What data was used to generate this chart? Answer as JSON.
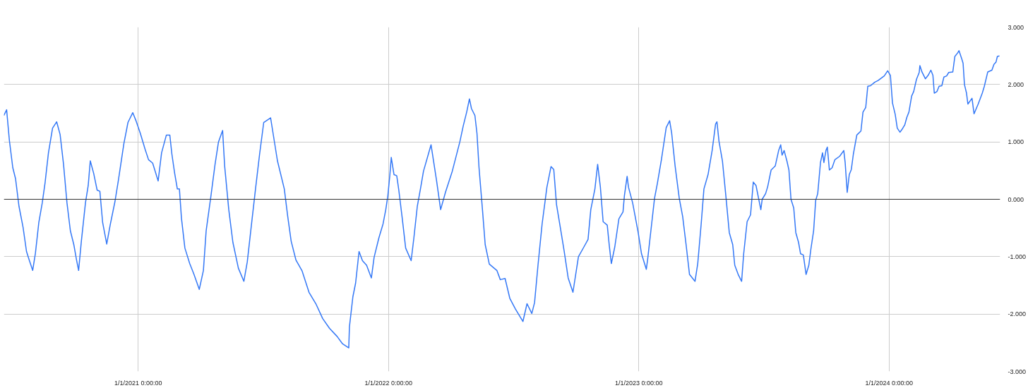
{
  "chart_data": {
    "type": "line",
    "xlim": [
      "2020-06-19",
      "2024-06-11"
    ],
    "xticks": [
      {
        "value": "2021-01-01",
        "label": "1/1/2021 0:00:00"
      },
      {
        "value": "2022-01-01",
        "label": "1/1/2022 0:00:00"
      },
      {
        "value": "2023-01-01",
        "label": "1/1/2023 0:00:00"
      },
      {
        "value": "2024-01-01",
        "label": "1/1/2024 0:00:00"
      }
    ],
    "ylim": [
      -3,
      3
    ],
    "yticks": [
      {
        "value": -3,
        "label": "-3.000"
      },
      {
        "value": -2,
        "label": "-2.000"
      },
      {
        "value": -1,
        "label": "-1.000"
      },
      {
        "value": 0,
        "label": "0.000"
      },
      {
        "value": 1,
        "label": "1.000"
      },
      {
        "value": 2,
        "label": "2.000"
      },
      {
        "value": 3,
        "label": "3.000"
      }
    ],
    "grid": true,
    "ref_lines": [
      {
        "axis": "y",
        "value": 0,
        "color": "#333333"
      }
    ],
    "x": [
      "2020-06-19",
      "2020-06-23",
      "2020-06-27",
      "2020-07-02",
      "2020-07-06",
      "2020-07-11",
      "2020-07-17",
      "2020-07-22",
      "2020-07-26",
      "2020-07-31",
      "2020-08-04",
      "2020-08-09",
      "2020-08-14",
      "2020-08-18",
      "2020-08-23",
      "2020-08-29",
      "2020-09-04",
      "2020-09-09",
      "2020-09-14",
      "2020-09-19",
      "2020-09-24",
      "2020-09-29",
      "2020-10-03",
      "2020-10-06",
      "2020-10-10",
      "2020-10-16",
      "2020-10-20",
      "2020-10-23",
      "2020-10-28",
      "2020-11-02",
      "2020-11-06",
      "2020-11-10",
      "2020-11-16",
      "2020-11-21",
      "2020-11-28",
      "2020-12-03",
      "2020-12-11",
      "2020-12-17",
      "2020-12-24",
      "2020-12-29",
      "2021-01-04",
      "2021-01-11",
      "2021-01-16",
      "2021-01-22",
      "2021-01-30",
      "2021-02-04",
      "2021-02-11",
      "2021-02-16",
      "2021-02-19",
      "2021-02-23",
      "2021-02-27",
      "2021-03-02",
      "2021-03-05",
      "2021-03-10",
      "2021-03-17",
      "2021-03-23",
      "2021-03-31",
      "2021-04-06",
      "2021-04-10",
      "2021-04-17",
      "2021-04-23",
      "2021-04-28",
      "2021-05-04",
      "2021-05-07",
      "2021-05-13",
      "2021-05-19",
      "2021-05-27",
      "2021-06-04",
      "2021-06-09",
      "2021-06-15",
      "2021-06-21",
      "2021-06-27",
      "2021-07-03",
      "2021-07-13",
      "2021-07-23",
      "2021-08-02",
      "2021-08-07",
      "2021-08-12",
      "2021-08-19",
      "2021-08-28",
      "2021-09-07",
      "2021-09-17",
      "2021-09-27",
      "2021-10-07",
      "2021-10-18",
      "2021-10-26",
      "2021-11-04",
      "2021-11-05",
      "2021-11-10",
      "2021-11-14",
      "2021-11-19",
      "2021-11-24",
      "2021-11-30",
      "2021-12-07",
      "2021-12-11",
      "2021-12-18",
      "2021-12-24",
      "2021-12-28",
      "2021-12-31",
      "2022-01-03",
      "2022-01-05",
      "2022-01-09",
      "2022-01-13",
      "2022-01-16",
      "2022-01-21",
      "2022-01-26",
      "2022-02-03",
      "2022-02-07",
      "2022-02-12",
      "2022-02-17",
      "2022-02-21",
      "2022-03-04",
      "2022-03-12",
      "2022-03-18",
      "2022-03-25",
      "2022-04-04",
      "2022-04-15",
      "2022-04-20",
      "2022-04-25",
      "2022-04-29",
      "2022-05-02",
      "2022-05-07",
      "2022-05-10",
      "2022-05-13",
      "2022-05-18",
      "2022-05-22",
      "2022-05-28",
      "2022-06-08",
      "2022-06-13",
      "2022-06-20",
      "2022-06-27",
      "2022-07-05",
      "2022-07-16",
      "2022-07-22",
      "2022-07-29",
      "2022-08-02",
      "2022-08-07",
      "2022-08-13",
      "2022-08-20",
      "2022-08-26",
      "2022-08-30",
      "2022-09-03",
      "2022-09-08",
      "2022-09-14",
      "2022-09-20",
      "2022-09-27",
      "2022-10-05",
      "2022-10-13",
      "2022-10-19",
      "2022-10-23",
      "2022-10-29",
      "2022-11-02",
      "2022-11-06",
      "2022-11-10",
      "2022-11-16",
      "2022-11-19",
      "2022-11-22",
      "2022-11-27",
      "2022-12-03",
      "2022-12-09",
      "2022-12-11",
      "2022-12-15",
      "2022-12-17",
      "2022-12-23",
      "2022-12-31",
      "2023-01-05",
      "2023-01-12",
      "2023-01-14",
      "2023-01-19",
      "2023-01-24",
      "2023-01-28",
      "2023-02-03",
      "2023-02-10",
      "2023-02-15",
      "2023-02-18",
      "2023-02-23",
      "2023-03-01",
      "2023-03-06",
      "2023-03-11",
      "2023-03-16",
      "2023-03-24",
      "2023-03-28",
      "2023-04-02",
      "2023-04-06",
      "2023-04-12",
      "2023-04-18",
      "2023-04-23",
      "2023-04-25",
      "2023-04-28",
      "2023-05-03",
      "2023-05-08",
      "2023-05-13",
      "2023-05-18",
      "2023-05-21",
      "2023-05-26",
      "2023-05-31",
      "2023-06-03",
      "2023-06-08",
      "2023-06-13",
      "2023-06-17",
      "2023-06-21",
      "2023-06-28",
      "2023-06-30",
      "2023-07-05",
      "2023-07-08",
      "2023-07-13",
      "2023-07-19",
      "2023-07-24",
      "2023-07-27",
      "2023-07-29",
      "2023-08-01",
      "2023-08-05",
      "2023-08-08",
      "2023-08-11",
      "2023-08-15",
      "2023-08-18",
      "2023-08-22",
      "2023-08-25",
      "2023-08-29",
      "2023-09-02",
      "2023-09-06",
      "2023-09-09",
      "2023-09-13",
      "2023-09-16",
      "2023-09-19",
      "2023-09-23",
      "2023-09-26",
      "2023-09-28",
      "2023-10-01",
      "2023-10-03",
      "2023-10-06",
      "2023-10-10",
      "2023-10-14",
      "2023-10-21",
      "2023-10-27",
      "2023-10-29",
      "2023-11-01",
      "2023-11-04",
      "2023-11-07",
      "2023-11-10",
      "2023-11-15",
      "2023-11-21",
      "2023-11-24",
      "2023-11-28",
      "2023-12-01",
      "2023-12-05",
      "2023-12-11",
      "2023-12-16",
      "2023-12-25",
      "2023-12-30",
      "2024-01-03",
      "2024-01-06",
      "2024-01-10",
      "2024-01-13",
      "2024-01-17",
      "2024-01-20",
      "2024-01-24",
      "2024-01-27",
      "2024-01-30",
      "2024-02-03",
      "2024-02-06",
      "2024-02-10",
      "2024-02-14",
      "2024-02-15",
      "2024-02-18",
      "2024-02-23",
      "2024-02-27",
      "2024-03-02",
      "2024-03-05",
      "2024-03-07",
      "2024-03-11",
      "2024-03-14",
      "2024-03-18",
      "2024-03-21",
      "2024-03-25",
      "2024-03-28",
      "2024-04-03",
      "2024-04-06",
      "2024-04-10",
      "2024-04-12",
      "2024-04-16",
      "2024-04-18",
      "2024-04-20",
      "2024-04-23",
      "2024-04-25",
      "2024-05-01",
      "2024-05-04",
      "2024-05-10",
      "2024-05-16",
      "2024-05-19",
      "2024-05-24",
      "2024-05-30",
      "2024-06-02",
      "2024-06-05",
      "2024-06-07",
      "2024-06-10"
    ],
    "series": [
      {
        "color": "#3478f6",
        "values": [
          1.46,
          1.56,
          1.03,
          0.55,
          0.36,
          -0.12,
          -0.49,
          -0.91,
          -1.06,
          -1.24,
          -0.94,
          -0.4,
          -0.06,
          0.28,
          0.81,
          1.24,
          1.35,
          1.13,
          0.61,
          -0.06,
          -0.55,
          -0.79,
          -1.06,
          -1.24,
          -0.73,
          -0.06,
          0.24,
          0.67,
          0.45,
          0.16,
          0.14,
          -0.4,
          -0.78,
          -0.45,
          -0.04,
          0.33,
          0.97,
          1.34,
          1.51,
          1.36,
          1.15,
          0.87,
          0.69,
          0.63,
          0.32,
          0.81,
          1.12,
          1.12,
          0.79,
          0.46,
          0.18,
          0.18,
          -0.33,
          -0.85,
          -1.12,
          -1.3,
          -1.57,
          -1.24,
          -0.55,
          0.06,
          0.61,
          1.0,
          1.2,
          0.58,
          -0.18,
          -0.75,
          -1.2,
          -1.43,
          -1.09,
          -0.45,
          0.18,
          0.79,
          1.34,
          1.42,
          0.67,
          0.18,
          -0.3,
          -0.73,
          -1.06,
          -1.25,
          -1.62,
          -1.82,
          -2.08,
          -2.25,
          -2.39,
          -2.52,
          -2.59,
          -2.22,
          -1.7,
          -1.46,
          -0.91,
          -1.07,
          -1.15,
          -1.37,
          -1.01,
          -0.67,
          -0.43,
          -0.18,
          0.06,
          0.43,
          0.73,
          0.43,
          0.41,
          0.16,
          -0.33,
          -0.85,
          -1.07,
          -0.67,
          -0.12,
          0.21,
          0.49,
          0.95,
          0.33,
          -0.18,
          0.12,
          0.49,
          1.0,
          1.28,
          1.52,
          1.75,
          1.58,
          1.46,
          1.15,
          0.55,
          -0.18,
          -0.79,
          -1.13,
          -1.24,
          -1.4,
          -1.38,
          -1.73,
          -1.91,
          -2.13,
          -1.82,
          -1.99,
          -1.8,
          -1.15,
          -0.43,
          0.21,
          0.57,
          0.52,
          -0.09,
          -0.45,
          -0.89,
          -1.37,
          -1.62,
          -1.0,
          -0.83,
          -0.7,
          -0.18,
          0.18,
          0.61,
          0.21,
          -0.39,
          -0.45,
          -0.81,
          -1.12,
          -0.83,
          -0.34,
          -0.22,
          0.06,
          0.4,
          0.21,
          -0.06,
          -0.57,
          -0.95,
          -1.22,
          -1.04,
          -0.51,
          0.02,
          0.27,
          0.69,
          1.25,
          1.37,
          1.15,
          0.58,
          0.02,
          -0.3,
          -0.79,
          -1.31,
          -1.43,
          -1.12,
          -0.43,
          0.18,
          0.43,
          0.85,
          1.31,
          1.35,
          1.01,
          0.67,
          0.06,
          -0.58,
          -0.79,
          -1.15,
          -1.31,
          -1.43,
          -0.95,
          -0.39,
          -0.27,
          0.3,
          0.24,
          -0.18,
          0.0,
          0.1,
          0.22,
          0.51,
          0.58,
          0.85,
          0.95,
          0.77,
          0.85,
          0.67,
          0.51,
          0.0,
          -0.15,
          -0.58,
          -0.75,
          -0.95,
          -0.97,
          -1.31,
          -1.15,
          -0.87,
          -0.55,
          -0.02,
          0.1,
          0.64,
          0.81,
          0.64,
          0.85,
          0.91,
          0.51,
          0.55,
          0.69,
          0.75,
          0.85,
          0.64,
          0.12,
          0.43,
          0.52,
          0.79,
          1.12,
          1.19,
          1.52,
          1.6,
          1.97,
          1.98,
          2.04,
          2.07,
          2.15,
          2.24,
          2.16,
          1.68,
          1.48,
          1.24,
          1.17,
          1.22,
          1.3,
          1.43,
          1.52,
          1.8,
          1.88,
          2.09,
          2.21,
          2.33,
          2.22,
          2.1,
          2.16,
          2.25,
          2.16,
          1.85,
          1.88,
          1.97,
          1.98,
          2.13,
          2.15,
          2.21,
          2.22,
          2.49,
          2.55,
          2.59,
          2.45,
          2.37,
          2.0,
          1.85,
          1.66,
          1.76,
          1.49,
          1.66,
          1.85,
          1.97,
          2.22,
          2.25,
          2.35,
          2.39,
          2.49,
          2.5
        ]
      }
    ]
  }
}
